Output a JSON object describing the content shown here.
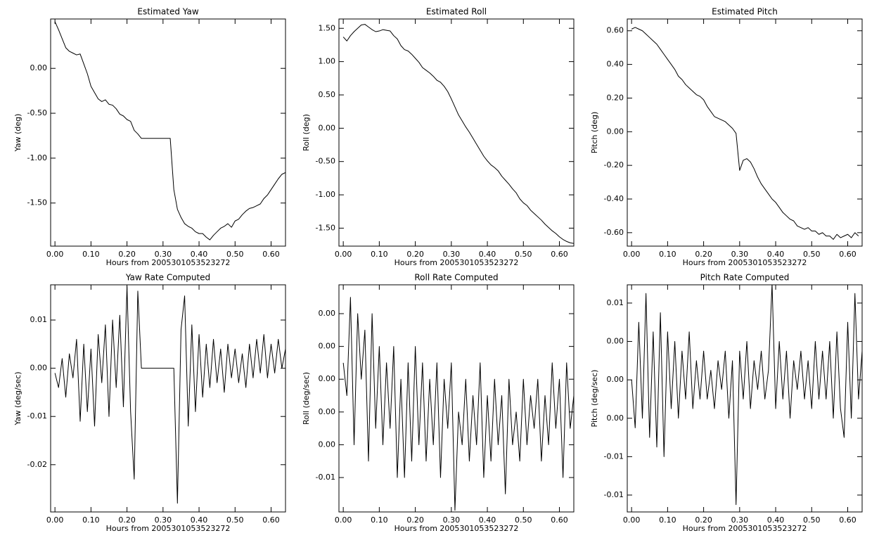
{
  "chart_data": [
    {
      "type": "line",
      "title": "Estimated Yaw",
      "xlabel": "Hours from 2005301053523272",
      "ylabel": "Yaw (deg)",
      "color": "#000000",
      "xlim": [
        -0.012,
        0.64
      ],
      "xticks": [
        {
          "value": 0,
          "label": "0.00"
        },
        {
          "value": 0.1,
          "label": "0.10"
        },
        {
          "value": 0.2,
          "label": "0.20"
        },
        {
          "value": 0.3,
          "label": "0.30"
        },
        {
          "value": 0.4,
          "label": "0.40"
        },
        {
          "value": 0.5,
          "label": "0.50"
        },
        {
          "value": 0.6,
          "label": "0.60"
        }
      ],
      "ylim": [
        -1.98,
        0.55
      ],
      "yticks": [
        {
          "value": 0,
          "label": "0.00"
        },
        {
          "value": -0.5,
          "label": "-0.50"
        },
        {
          "value": -1,
          "label": "-1.00"
        },
        {
          "value": -1.5,
          "label": "-1.50"
        }
      ],
      "x": [
        0,
        0.01,
        0.02,
        0.03,
        0.04,
        0.05,
        0.06,
        0.07,
        0.08,
        0.09,
        0.1,
        0.11,
        0.12,
        0.13,
        0.14,
        0.15,
        0.16,
        0.17,
        0.18,
        0.19,
        0.2,
        0.21,
        0.22,
        0.23,
        0.24,
        0.25,
        0.26,
        0.27,
        0.28,
        0.29,
        0.3,
        0.31,
        0.32,
        0.33,
        0.34,
        0.35,
        0.36,
        0.37,
        0.38,
        0.39,
        0.4,
        0.41,
        0.42,
        0.43,
        0.44,
        0.45,
        0.46,
        0.47,
        0.48,
        0.49,
        0.5,
        0.51,
        0.52,
        0.53,
        0.54,
        0.55,
        0.56,
        0.57,
        0.58,
        0.59,
        0.6,
        0.61,
        0.62,
        0.63,
        0.64
      ],
      "values": [
        0.52,
        0.43,
        0.33,
        0.23,
        0.19,
        0.17,
        0.15,
        0.16,
        0.05,
        -0.06,
        -0.2,
        -0.27,
        -0.34,
        -0.37,
        -0.35,
        -0.4,
        -0.41,
        -0.45,
        -0.51,
        -0.53,
        -0.57,
        -0.59,
        -0.69,
        -0.73,
        -0.78,
        -0.78,
        -0.78,
        -0.78,
        -0.78,
        -0.78,
        -0.78,
        -0.78,
        -0.78,
        -1.35,
        -1.57,
        -1.66,
        -1.73,
        -1.76,
        -1.78,
        -1.82,
        -1.84,
        -1.84,
        -1.88,
        -1.91,
        -1.86,
        -1.82,
        -1.78,
        -1.76,
        -1.73,
        -1.77,
        -1.7,
        -1.68,
        -1.63,
        -1.59,
        -1.56,
        -1.55,
        -1.53,
        -1.51,
        -1.45,
        -1.41,
        -1.35,
        -1.29,
        -1.23,
        -1.18,
        -1.16
      ]
    },
    {
      "type": "line",
      "title": "Estimated Roll",
      "xlabel": "Hours from 2005301053523272",
      "ylabel": "Roll (deg)",
      "color": "#000000",
      "xlim": [
        -0.012,
        0.64
      ],
      "xticks": [
        {
          "value": 0,
          "label": "0.00"
        },
        {
          "value": 0.1,
          "label": "0.10"
        },
        {
          "value": 0.2,
          "label": "0.20"
        },
        {
          "value": 0.3,
          "label": "0.30"
        },
        {
          "value": 0.4,
          "label": "0.40"
        },
        {
          "value": 0.5,
          "label": "0.50"
        },
        {
          "value": 0.6,
          "label": "0.60"
        }
      ],
      "ylim": [
        -1.77,
        1.64
      ],
      "yticks": [
        {
          "value": 1.5,
          "label": "1.50"
        },
        {
          "value": 1,
          "label": "1.00"
        },
        {
          "value": 0.5,
          "label": "0.50"
        },
        {
          "value": 0,
          "label": "0.00"
        },
        {
          "value": -0.5,
          "label": "-0.50"
        },
        {
          "value": -1,
          "label": "-1.00"
        },
        {
          "value": -1.5,
          "label": "-1.50"
        }
      ],
      "x": [
        0,
        0.01,
        0.02,
        0.03,
        0.04,
        0.05,
        0.06,
        0.07,
        0.08,
        0.09,
        0.1,
        0.11,
        0.12,
        0.13,
        0.14,
        0.15,
        0.16,
        0.17,
        0.18,
        0.19,
        0.2,
        0.21,
        0.22,
        0.23,
        0.24,
        0.25,
        0.26,
        0.27,
        0.28,
        0.29,
        0.3,
        0.31,
        0.32,
        0.33,
        0.34,
        0.35,
        0.36,
        0.37,
        0.38,
        0.39,
        0.4,
        0.41,
        0.42,
        0.43,
        0.44,
        0.45,
        0.46,
        0.47,
        0.48,
        0.49,
        0.5,
        0.51,
        0.52,
        0.53,
        0.54,
        0.55,
        0.56,
        0.57,
        0.58,
        0.59,
        0.6,
        0.61,
        0.62,
        0.63,
        0.64
      ],
      "values": [
        1.37,
        1.31,
        1.39,
        1.45,
        1.5,
        1.55,
        1.56,
        1.52,
        1.48,
        1.45,
        1.46,
        1.48,
        1.47,
        1.46,
        1.39,
        1.34,
        1.24,
        1.18,
        1.16,
        1.11,
        1.05,
        0.99,
        0.91,
        0.87,
        0.83,
        0.78,
        0.72,
        0.69,
        0.63,
        0.55,
        0.44,
        0.32,
        0.2,
        0.11,
        0.02,
        -0.06,
        -0.15,
        -0.24,
        -0.33,
        -0.42,
        -0.49,
        -0.55,
        -0.59,
        -0.64,
        -0.72,
        -0.78,
        -0.84,
        -0.91,
        -0.97,
        -1.06,
        -1.12,
        -1.16,
        -1.23,
        -1.28,
        -1.33,
        -1.38,
        -1.44,
        -1.49,
        -1.54,
        -1.58,
        -1.63,
        -1.67,
        -1.7,
        -1.72,
        -1.73
      ]
    },
    {
      "type": "line",
      "title": "Estimated Pitch",
      "xlabel": "Hours from 2005301053523272",
      "ylabel": "Pitch (deg)",
      "color": "#000000",
      "xlim": [
        -0.012,
        0.64
      ],
      "xticks": [
        {
          "value": 0,
          "label": "0.00"
        },
        {
          "value": 0.1,
          "label": "0.10"
        },
        {
          "value": 0.2,
          "label": "0.20"
        },
        {
          "value": 0.3,
          "label": "0.30"
        },
        {
          "value": 0.4,
          "label": "0.40"
        },
        {
          "value": 0.5,
          "label": "0.50"
        },
        {
          "value": 0.6,
          "label": "0.60"
        }
      ],
      "ylim": [
        -0.68,
        0.67
      ],
      "yticks": [
        {
          "value": 0.6,
          "label": "0.60"
        },
        {
          "value": 0.4,
          "label": "0.40"
        },
        {
          "value": 0.2,
          "label": "0.20"
        },
        {
          "value": 0,
          "label": "0.00"
        },
        {
          "value": -0.2,
          "label": "-0.20"
        },
        {
          "value": -0.4,
          "label": "-0.40"
        },
        {
          "value": -0.6,
          "label": "-0.60"
        }
      ],
      "x": [
        0,
        0.01,
        0.02,
        0.03,
        0.04,
        0.05,
        0.06,
        0.07,
        0.08,
        0.09,
        0.1,
        0.11,
        0.12,
        0.13,
        0.14,
        0.15,
        0.16,
        0.17,
        0.18,
        0.19,
        0.2,
        0.21,
        0.22,
        0.23,
        0.24,
        0.25,
        0.26,
        0.27,
        0.28,
        0.29,
        0.3,
        0.31,
        0.32,
        0.33,
        0.34,
        0.35,
        0.36,
        0.37,
        0.38,
        0.39,
        0.4,
        0.41,
        0.42,
        0.43,
        0.44,
        0.45,
        0.46,
        0.47,
        0.48,
        0.49,
        0.5,
        0.51,
        0.52,
        0.53,
        0.54,
        0.55,
        0.56,
        0.57,
        0.58,
        0.59,
        0.6,
        0.61,
        0.62,
        0.63
      ],
      "values": [
        0.61,
        0.62,
        0.61,
        0.6,
        0.58,
        0.56,
        0.54,
        0.52,
        0.49,
        0.46,
        0.43,
        0.4,
        0.37,
        0.33,
        0.31,
        0.28,
        0.26,
        0.24,
        0.22,
        0.21,
        0.19,
        0.15,
        0.12,
        0.09,
        0.08,
        0.07,
        0.06,
        0.04,
        0.02,
        -0.01,
        -0.23,
        -0.17,
        -0.16,
        -0.18,
        -0.22,
        -0.27,
        -0.31,
        -0.34,
        -0.37,
        -0.4,
        -0.42,
        -0.45,
        -0.48,
        -0.5,
        -0.52,
        -0.53,
        -0.56,
        -0.57,
        -0.58,
        -0.57,
        -0.59,
        -0.59,
        -0.61,
        -0.6,
        -0.62,
        -0.62,
        -0.64,
        -0.61,
        -0.63,
        -0.62,
        -0.61,
        -0.63,
        -0.6,
        -0.62
      ]
    },
    {
      "type": "line",
      "title": "Yaw Rate Computed",
      "xlabel": "Hours from 2005301053523272",
      "ylabel": "Yaw (deg/sec)",
      "color": "#000000",
      "xlim": [
        -0.012,
        0.64
      ],
      "xticks": [
        {
          "value": 0,
          "label": "0.00"
        },
        {
          "value": 0.1,
          "label": "0.10"
        },
        {
          "value": 0.2,
          "label": "0.20"
        },
        {
          "value": 0.3,
          "label": "0.30"
        },
        {
          "value": 0.4,
          "label": "0.40"
        },
        {
          "value": 0.5,
          "label": "0.50"
        },
        {
          "value": 0.6,
          "label": "0.60"
        }
      ],
      "ylim": [
        -0.0298,
        0.0173
      ],
      "yticks": [
        0.01,
        {
          "value": 0,
          "label": "0.00"
        },
        -0.01,
        -0.02
      ],
      "x": [
        0,
        0.01,
        0.02,
        0.03,
        0.04,
        0.05,
        0.06,
        0.07,
        0.08,
        0.09,
        0.1,
        0.11,
        0.12,
        0.13,
        0.14,
        0.15,
        0.16,
        0.17,
        0.18,
        0.19,
        0.2,
        0.21,
        0.22,
        0.23,
        0.24,
        0.25,
        0.26,
        0.27,
        0.28,
        0.29,
        0.3,
        0.31,
        0.32,
        0.33,
        0.34,
        0.35,
        0.36,
        0.37,
        0.38,
        0.39,
        0.4,
        0.41,
        0.42,
        0.43,
        0.44,
        0.45,
        0.46,
        0.47,
        0.48,
        0.49,
        0.5,
        0.51,
        0.52,
        0.53,
        0.54,
        0.55,
        0.56,
        0.57,
        0.58,
        0.59,
        0.6,
        0.61,
        0.62,
        0.63,
        0.64
      ],
      "values": [
        -0.001,
        -0.004,
        0.002,
        -0.006,
        0.003,
        -0.002,
        0.006,
        -0.011,
        0.005,
        -0.009,
        0.004,
        -0.012,
        0.007,
        -0.003,
        0.009,
        -0.01,
        0.01,
        -0.004,
        0.011,
        -0.008,
        0.017,
        -0.009,
        -0.023,
        0.016,
        0,
        0,
        0,
        0,
        0,
        0,
        0,
        0,
        0,
        0,
        -0.028,
        0.008,
        0.015,
        -0.012,
        0.009,
        -0.009,
        0.007,
        -0.006,
        0.005,
        -0.004,
        0.006,
        -0.003,
        0.004,
        -0.005,
        0.005,
        -0.002,
        0.004,
        -0.003,
        0.003,
        -0.004,
        0.005,
        -0.002,
        0.006,
        -0.001,
        0.007,
        -0.002,
        0.005,
        -0.001,
        0.006,
        0,
        0.004
      ]
    },
    {
      "type": "line",
      "title": "Roll Rate Computed",
      "xlabel": "Hours from 2005301053523272",
      "ylabel": "Roll (deg/sec)",
      "color": "#000000",
      "xlim": [
        -0.012,
        0.64
      ],
      "xticks": [
        {
          "value": 0,
          "label": "0.00"
        },
        {
          "value": 0.1,
          "label": "0.10"
        },
        {
          "value": 0.2,
          "label": "0.20"
        },
        {
          "value": 0.3,
          "label": "0.30"
        },
        {
          "value": 0.4,
          "label": "0.40"
        },
        {
          "value": 0.5,
          "label": "0.50"
        },
        {
          "value": 0.6,
          "label": "0.60"
        }
      ],
      "ylim": [
        -0.0081,
        0.00576
      ],
      "yticks": [
        {
          "value": 0.004,
          "label": "0.00"
        },
        {
          "value": 0.002,
          "label": "0.00"
        },
        {
          "value": 0,
          "label": "0.00"
        },
        {
          "value": -0.002,
          "label": "0.00"
        },
        {
          "value": -0.004,
          "label": "0.00"
        },
        {
          "value": -0.006,
          "label": "-0.01"
        }
      ],
      "x": [
        0,
        0.01,
        0.02,
        0.03,
        0.04,
        0.05,
        0.06,
        0.07,
        0.08,
        0.09,
        0.1,
        0.11,
        0.12,
        0.13,
        0.14,
        0.15,
        0.16,
        0.17,
        0.18,
        0.19,
        0.2,
        0.21,
        0.22,
        0.23,
        0.24,
        0.25,
        0.26,
        0.27,
        0.28,
        0.29,
        0.3,
        0.31,
        0.32,
        0.33,
        0.34,
        0.35,
        0.36,
        0.37,
        0.38,
        0.39,
        0.4,
        0.41,
        0.42,
        0.43,
        0.44,
        0.45,
        0.46,
        0.47,
        0.48,
        0.49,
        0.5,
        0.51,
        0.52,
        0.53,
        0.54,
        0.55,
        0.56,
        0.57,
        0.58,
        0.59,
        0.6,
        0.61,
        0.62,
        0.63,
        0.64
      ],
      "values": [
        0.001,
        -0.001,
        0.005,
        -0.004,
        0.004,
        0,
        0.003,
        -0.005,
        0.004,
        -0.003,
        0.002,
        -0.004,
        0.001,
        -0.003,
        0.002,
        -0.006,
        0,
        -0.006,
        0.001,
        -0.005,
        0.002,
        -0.004,
        0.001,
        -0.005,
        0,
        -0.004,
        0.001,
        -0.006,
        0,
        -0.003,
        0.001,
        -0.008,
        -0.002,
        -0.004,
        0,
        -0.005,
        -0.001,
        -0.004,
        0.001,
        -0.006,
        -0.001,
        -0.005,
        0,
        -0.004,
        -0.001,
        -0.007,
        0,
        -0.004,
        -0.002,
        -0.005,
        0,
        -0.004,
        -0.001,
        -0.003,
        0,
        -0.005,
        -0.001,
        -0.004,
        0.001,
        -0.003,
        0,
        -0.006,
        0.001,
        -0.003,
        -0.001
      ]
    },
    {
      "type": "line",
      "title": "Pitch Rate Computed",
      "xlabel": "Hours from 2005301053523272",
      "ylabel": "Pitch (deg/sec)",
      "color": "#000000",
      "xlim": [
        -0.012,
        0.64
      ],
      "xticks": [
        {
          "value": 0,
          "label": "0.00"
        },
        {
          "value": 0.1,
          "label": "0.10"
        },
        {
          "value": 0.2,
          "label": "0.20"
        },
        {
          "value": 0.3,
          "label": "0.30"
        },
        {
          "value": 0.4,
          "label": "0.40"
        },
        {
          "value": 0.5,
          "label": "0.50"
        },
        {
          "value": 0.6,
          "label": "0.60"
        }
      ],
      "ylim": [
        -0.01376,
        0.0099
      ],
      "yticks": [
        {
          "value": 0.008,
          "label": "0.01"
        },
        {
          "value": 0.004,
          "label": "0.00"
        },
        {
          "value": 0,
          "label": "0.00"
        },
        {
          "value": -0.004,
          "label": "0.00"
        },
        {
          "value": -0.008,
          "label": "-0.01"
        },
        {
          "value": -0.012,
          "label": "-0.01"
        }
      ],
      "x": [
        0,
        0.01,
        0.02,
        0.03,
        0.04,
        0.05,
        0.06,
        0.07,
        0.08,
        0.09,
        0.1,
        0.11,
        0.12,
        0.13,
        0.14,
        0.15,
        0.16,
        0.17,
        0.18,
        0.19,
        0.2,
        0.21,
        0.22,
        0.23,
        0.24,
        0.25,
        0.26,
        0.27,
        0.28,
        0.29,
        0.3,
        0.31,
        0.32,
        0.33,
        0.34,
        0.35,
        0.36,
        0.37,
        0.38,
        0.39,
        0.4,
        0.41,
        0.42,
        0.43,
        0.44,
        0.45,
        0.46,
        0.47,
        0.48,
        0.49,
        0.5,
        0.51,
        0.52,
        0.53,
        0.54,
        0.55,
        0.56,
        0.57,
        0.58,
        0.59,
        0.6,
        0.61,
        0.62,
        0.63,
        0.64
      ],
      "values": [
        0,
        -0.005,
        0.006,
        -0.004,
        0.009,
        -0.006,
        0.005,
        -0.007,
        0.007,
        -0.008,
        0.005,
        -0.003,
        0.004,
        -0.004,
        0.003,
        -0.002,
        0.005,
        -0.003,
        0.002,
        -0.002,
        0.003,
        -0.002,
        0.001,
        -0.003,
        0.002,
        -0.001,
        0.003,
        -0.004,
        0.002,
        -0.013,
        0.003,
        -0.002,
        0.004,
        -0.003,
        0.002,
        -0.001,
        0.003,
        -0.002,
        0.001,
        0.01,
        -0.003,
        0.004,
        -0.002,
        0.003,
        -0.004,
        0.002,
        -0.001,
        0.003,
        -0.002,
        0.002,
        -0.003,
        0.004,
        -0.002,
        0.003,
        -0.002,
        0.004,
        -0.004,
        0.005,
        -0.003,
        -0.006,
        0.006,
        -0.004,
        0.009,
        -0.002,
        0.003
      ]
    }
  ]
}
